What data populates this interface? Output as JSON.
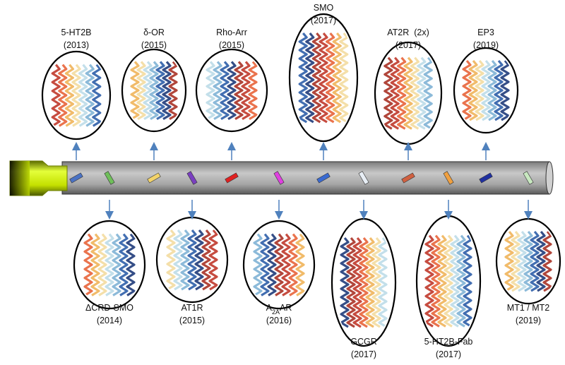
{
  "top": [
    {
      "label": "5-HT2B",
      "year": "(2013)"
    },
    {
      "label": "δ-OR",
      "year": "(2015)"
    },
    {
      "label": "Rho-Arr",
      "year": "(2015)"
    },
    {
      "label": "SMO",
      "year": "(2017)"
    },
    {
      "label": "AT2R  (2x)",
      "year": "(2017)"
    },
    {
      "label": "EP3",
      "year": "(2019)"
    }
  ],
  "bottom": [
    {
      "label": "ΔCRD-SMO",
      "year": "(2014)"
    },
    {
      "label": "AT1R",
      "year": "(2015)"
    },
    {
      "label_parts": [
        "A",
        "2A",
        "AR"
      ],
      "year": "(2016)"
    },
    {
      "label": "GCGR",
      "year": "(2017)"
    },
    {
      "label": "5-HT2B-Fab",
      "year": "(2017)"
    },
    {
      "label": "MT1 / MT2",
      "year": "(2019)"
    }
  ]
}
